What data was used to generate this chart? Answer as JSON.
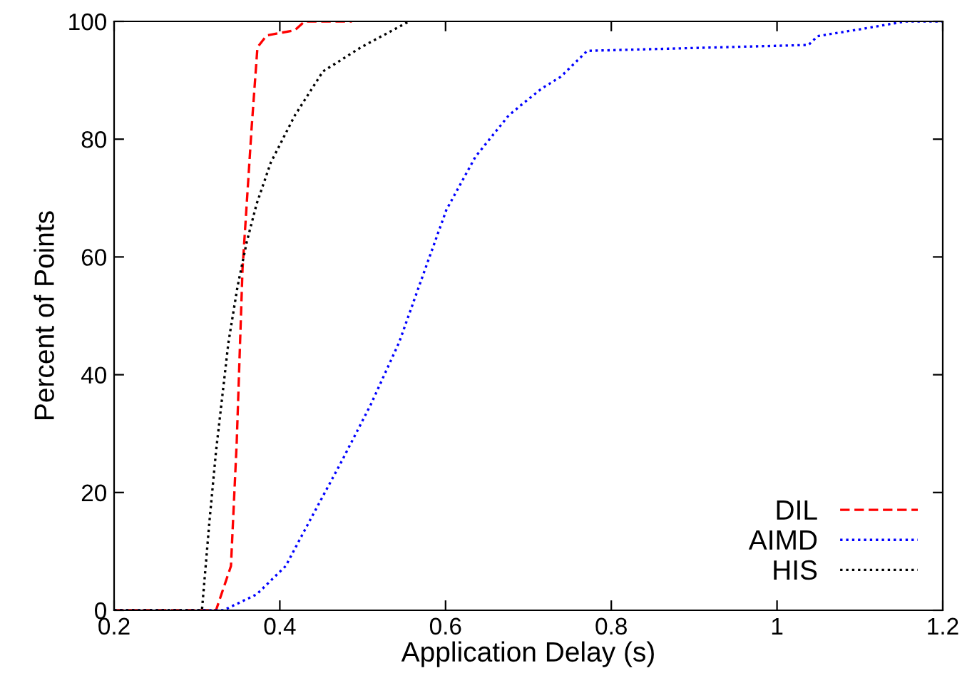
{
  "chart_data": {
    "type": "line",
    "xlabel": "Application Delay (s)",
    "ylabel": "Percent of Points",
    "xlim": [
      0.2,
      1.2
    ],
    "xticks": [
      0.2,
      0.4,
      0.6,
      0.8,
      1,
      1.2
    ],
    "ylim": [
      0,
      100
    ],
    "yticks": [
      0,
      20,
      40,
      60,
      80,
      100
    ],
    "grid": false,
    "legend": "bottom right",
    "marker": "none",
    "series": [
      {
        "name": "DIL",
        "color": "#ff0000",
        "line_style": "dashed",
        "x": [
          0.2,
          0.323,
          0.341,
          0.348,
          0.355,
          0.366,
          0.373,
          0.384,
          0.418,
          0.43,
          0.487
        ],
        "values": [
          0,
          0,
          7.5,
          28.6,
          58,
          82,
          95.6,
          97.6,
          98.5,
          100,
          100
        ]
      },
      {
        "name": "AIMD",
        "color": "#0000ff",
        "line_style": "dotted",
        "x": [
          0.2,
          0.332,
          0.372,
          0.407,
          0.441,
          0.475,
          0.51,
          0.544,
          0.573,
          0.601,
          0.636,
          0.676,
          0.693,
          0.716,
          0.739,
          0.771,
          1.038,
          1.049,
          1.106,
          1.155,
          1.2
        ],
        "values": [
          0,
          0,
          2.7,
          7.5,
          16.5,
          25.4,
          35,
          45.5,
          57,
          68,
          77,
          84,
          86,
          88.6,
          90.6,
          95,
          96,
          97.5,
          98.8,
          100,
          100
        ]
      },
      {
        "name": "HIS",
        "color": "#000000",
        "line_style": "dotted",
        "x": [
          0.2,
          0.306,
          0.315,
          0.323,
          0.338,
          0.349,
          0.36,
          0.372,
          0.389,
          0.418,
          0.452,
          0.498,
          0.556
        ],
        "values": [
          0,
          0,
          15,
          27,
          45.5,
          55,
          62.5,
          69,
          76,
          84,
          91.5,
          95.6,
          100
        ]
      }
    ]
  }
}
